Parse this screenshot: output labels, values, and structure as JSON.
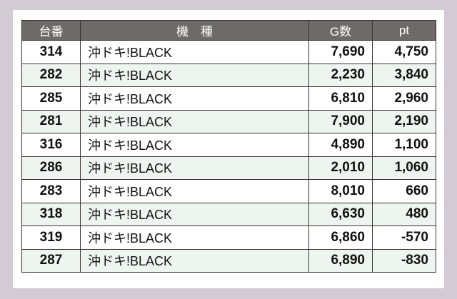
{
  "header": {
    "col_id": "台番",
    "col_model": "機　種",
    "col_games": "G数",
    "col_pt": "pt"
  },
  "rows": [
    {
      "id": "314",
      "model": "沖ドキ!BLACK",
      "games": "7,690",
      "pt": "4,750"
    },
    {
      "id": "282",
      "model": "沖ドキ!BLACK",
      "games": "2,230",
      "pt": "3,840"
    },
    {
      "id": "285",
      "model": "沖ドキ!BLACK",
      "games": "6,810",
      "pt": "2,960"
    },
    {
      "id": "281",
      "model": "沖ドキ!BLACK",
      "games": "7,900",
      "pt": "2,190"
    },
    {
      "id": "316",
      "model": "沖ドキ!BLACK",
      "games": "4,890",
      "pt": "1,100"
    },
    {
      "id": "286",
      "model": "沖ドキ!BLACK",
      "games": "2,010",
      "pt": "1,060"
    },
    {
      "id": "283",
      "model": "沖ドキ!BLACK",
      "games": "8,010",
      "pt": "660"
    },
    {
      "id": "318",
      "model": "沖ドキ!BLACK",
      "games": "6,630",
      "pt": "480"
    },
    {
      "id": "319",
      "model": "沖ドキ!BLACK",
      "games": "6,860",
      "pt": "-570"
    },
    {
      "id": "287",
      "model": "沖ドキ!BLACK",
      "games": "6,890",
      "pt": "-830"
    }
  ]
}
